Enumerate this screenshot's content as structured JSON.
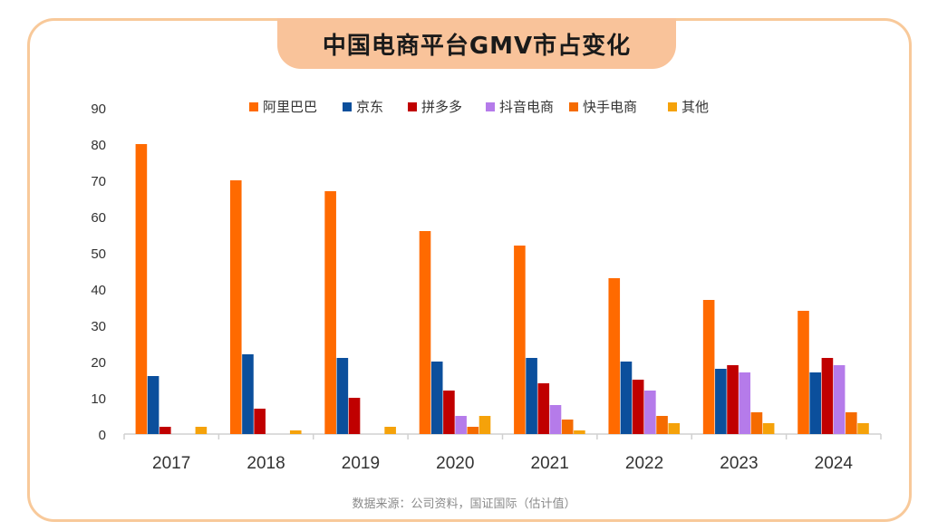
{
  "title": "中国电商平台GMV市占变化",
  "source": "数据来源：公司资料，国证国际（估计值）",
  "colors": {
    "frame_border": "#f8c99a",
    "title_bg": "#f9c39a"
  },
  "chart_data": {
    "type": "bar",
    "title": "中国电商平台GMV市占变化",
    "xlabel": "",
    "ylabel": "",
    "ylim": [
      0,
      90
    ],
    "yticks": [
      0,
      10,
      20,
      30,
      40,
      50,
      60,
      70,
      80,
      90
    ],
    "grid": false,
    "legend_position": "top",
    "categories": [
      "2017",
      "2018",
      "2019",
      "2020",
      "2021",
      "2022",
      "2023",
      "2024"
    ],
    "series": [
      {
        "name": "阿里巴巴",
        "color": "#ff6a00",
        "values": [
          80,
          70,
          67,
          56,
          52,
          43,
          37,
          34
        ]
      },
      {
        "name": "京东",
        "color": "#0b4f9c",
        "values": [
          16,
          22,
          21,
          20,
          21,
          20,
          18,
          17
        ]
      },
      {
        "name": "拼多多",
        "color": "#c00000",
        "values": [
          2,
          7,
          10,
          12,
          14,
          15,
          19,
          21
        ]
      },
      {
        "name": "抖音电商",
        "color": "#b57bea",
        "values": [
          0,
          0,
          0,
          5,
          8,
          12,
          17,
          19
        ]
      },
      {
        "name": "快手电商",
        "color": "#f56b00",
        "values": [
          0,
          0,
          0,
          2,
          4,
          5,
          6,
          6
        ]
      },
      {
        "name": "其他",
        "color": "#f5a20a",
        "values": [
          2,
          1,
          2,
          5,
          1,
          3,
          3,
          3
        ]
      }
    ]
  }
}
